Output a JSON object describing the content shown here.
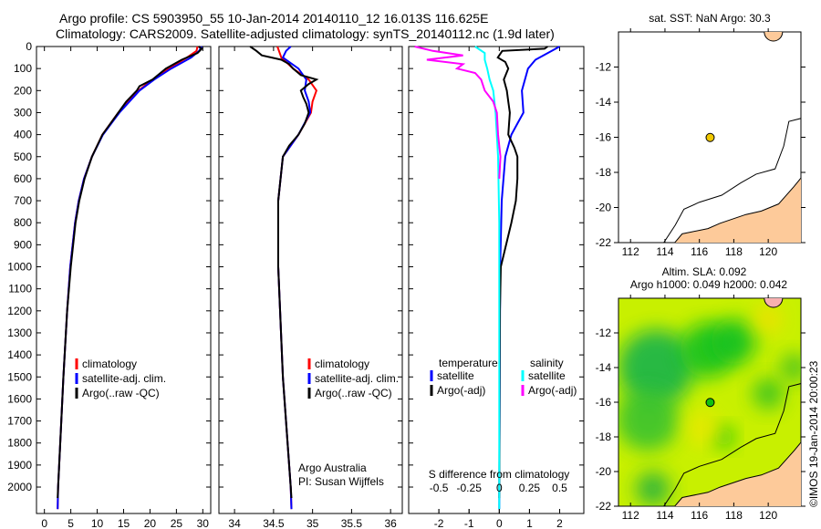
{
  "title": {
    "line1": "Argo profile: CS 5903950_55 10-Jan-2014 20140110_12 16.013S 116.625E",
    "line2": "Climatology: CARS2009. Satellite-adjusted climatology: synTS_20140112.nc (1.9d later)"
  },
  "watermark": "©IMOS 19-Jan-2014 20:00:23",
  "colors": {
    "climatology": "#ff0000",
    "satellite": "#0000ff",
    "argo": "#000000",
    "sal_satellite": "#00ffff",
    "sal_argo": "#ff00ff",
    "land": "#fdca9a"
  },
  "chart_data": [
    {
      "type": "line",
      "xlabel": "temperature (deg C)",
      "ylabel": "depth",
      "xlim": [
        -1.5,
        31.5
      ],
      "ylim": [
        2120,
        0
      ],
      "xticks": [
        0,
        5,
        10,
        15,
        20,
        25,
        30
      ],
      "yticks": [
        0,
        100,
        200,
        300,
        400,
        500,
        600,
        700,
        800,
        900,
        1000,
        1100,
        1200,
        1300,
        1400,
        1500,
        1600,
        1700,
        1800,
        1900,
        2000
      ],
      "legend": [
        "climatology",
        "satellite-adj. clim.",
        "Argo(..raw -QC)"
      ],
      "series": [
        {
          "name": "climatology",
          "depth": [
            0,
            20,
            50,
            100,
            150,
            200,
            300,
            400,
            500,
            600,
            700,
            800,
            1000,
            1200,
            1500,
            1700,
            2000,
            2100
          ],
          "values": [
            29,
            28.8,
            27,
            23.5,
            20.5,
            17.8,
            14,
            11,
            9,
            7.5,
            6.5,
            5.8,
            4.9,
            4.3,
            3.6,
            3.2,
            2.6,
            2.5
          ]
        },
        {
          "name": "satellite-adj. clim.",
          "depth": [
            0,
            20,
            50,
            100,
            150,
            200,
            300,
            400,
            500,
            600,
            700,
            800,
            1000,
            1200,
            1500,
            1700,
            2000,
            2100
          ],
          "values": [
            29.8,
            29.3,
            27.8,
            24,
            20.8,
            18,
            14.2,
            11.1,
            9,
            7.5,
            6.5,
            5.8,
            4.9,
            4.3,
            3.6,
            3.2,
            2.6,
            2.5
          ]
        },
        {
          "name": "Argo(..raw -QC)",
          "depth": [
            0,
            10,
            30,
            60,
            100,
            150,
            180,
            200,
            250,
            300,
            400,
            500,
            600,
            700,
            800,
            1000,
            1200,
            1500,
            1700,
            2000,
            2050
          ],
          "values": [
            29.2,
            29.8,
            29,
            26,
            23,
            20.5,
            18,
            17.5,
            15.5,
            14,
            11,
            9,
            7.6,
            6.6,
            5.9,
            5,
            4.3,
            3.6,
            3.2,
            2.6,
            2.5
          ]
        }
      ]
    },
    {
      "type": "line",
      "xlabel": "salinity",
      "xlim": [
        33.8,
        36.15
      ],
      "ylim": [
        2120,
        0
      ],
      "xticks": [
        34,
        34.5,
        35,
        35.5,
        36
      ],
      "xticklabels": [
        "34",
        "34.5",
        "35",
        "35.5",
        "36"
      ],
      "legend": [
        "climatology",
        "satellite-adj. clim.",
        "Argo(..raw -QC)"
      ],
      "annotation": [
        "Argo Australia",
        "PI: Susan Wijffels"
      ],
      "series": [
        {
          "name": "climatology",
          "depth": [
            0,
            50,
            100,
            150,
            200,
            250,
            300,
            400,
            500,
            700,
            1000,
            1500,
            2000,
            2100
          ],
          "values": [
            34.55,
            34.6,
            34.75,
            34.95,
            35.05,
            35,
            34.98,
            34.82,
            34.62,
            34.56,
            34.56,
            34.62,
            34.72,
            34.73
          ]
        },
        {
          "name": "satellite-adj. clim.",
          "depth": [
            0,
            20,
            50,
            100,
            150,
            200,
            250,
            300,
            400,
            500,
            700,
            1000,
            1500,
            2000,
            2100
          ],
          "values": [
            34.72,
            34.66,
            34.62,
            34.82,
            34.92,
            34.9,
            34.95,
            34.97,
            34.82,
            34.62,
            34.56,
            34.56,
            34.62,
            34.72,
            34.73
          ]
        },
        {
          "name": "Argo(..raw -QC)",
          "depth": [
            0,
            20,
            40,
            60,
            80,
            100,
            130,
            150,
            170,
            200,
            230,
            260,
            300,
            350,
            400,
            450,
            500,
            700,
            1000,
            1500,
            2000,
            2050
          ],
          "values": [
            34.2,
            34.28,
            34.35,
            34.6,
            34.7,
            34.75,
            34.85,
            35.05,
            34.95,
            34.85,
            34.88,
            34.92,
            34.95,
            34.9,
            34.82,
            34.7,
            34.62,
            34.56,
            34.56,
            34.62,
            34.72,
            34.73
          ]
        }
      ]
    },
    {
      "type": "line",
      "xlabel": "T difference from climatology",
      "x2label": "S difference from climatology",
      "xlim": [
        -3,
        2.8
      ],
      "ylim": [
        2120,
        0
      ],
      "xticks": [
        -2,
        -1,
        0,
        1,
        2
      ],
      "x2ticks": [
        -0.5,
        -0.25,
        0,
        0.25,
        0.5
      ],
      "x2ticklabels": [
        "-0.5",
        "-0.25",
        "0",
        "0.25",
        "0.5"
      ],
      "legend_headers": [
        "temperature",
        "salinity"
      ],
      "legend": [
        "satellite",
        "Argo(-adj)",
        "satellite",
        "Argo(-adj)"
      ],
      "series": [
        {
          "name": "T satellite",
          "depth": [
            0,
            30,
            60,
            100,
            200,
            300,
            350,
            400,
            500,
            700,
            1000,
            2100
          ],
          "values": [
            2.0,
            1.6,
            1.2,
            0.95,
            0.75,
            0.8,
            0.6,
            0.4,
            0.2,
            0.08,
            0.03,
            0
          ]
        },
        {
          "name": "T Argo(-adj)",
          "depth": [
            0,
            10,
            20,
            50,
            70,
            100,
            150,
            200,
            250,
            300,
            400,
            460,
            500,
            600,
            700,
            800,
            1000,
            1200,
            2050
          ],
          "values": [
            1.6,
            1.5,
            0.1,
            -0.05,
            0.2,
            0.3,
            0.15,
            0.25,
            0.3,
            0.35,
            0.3,
            0.5,
            0.6,
            0.6,
            0.55,
            0.4,
            0.05,
            0.02,
            0
          ]
        },
        {
          "name": "S satellite",
          "depth": [
            0,
            30,
            60,
            100,
            150,
            200,
            300,
            500,
            800,
            1200,
            2100
          ],
          "values": [
            -0.2,
            -0.12,
            -0.12,
            -0.1,
            -0.08,
            -0.05,
            -0.03,
            -0.01,
            0,
            0,
            0
          ]
        },
        {
          "name": "S Argo(-adj)",
          "depth": [
            0,
            20,
            40,
            60,
            80,
            100,
            120,
            150,
            200,
            250,
            300,
            400,
            500,
            600
          ],
          "values": [
            -0.7,
            -0.55,
            -0.3,
            -0.6,
            -0.3,
            -0.35,
            -0.2,
            -0.15,
            -0.12,
            -0.05,
            -0.02,
            -0.01,
            0.01,
            0
          ]
        }
      ]
    },
    {
      "type": "map",
      "title": "sat. SST: NaN Argo: 30.3",
      "xlim": [
        111.3,
        121.9
      ],
      "ylim": [
        -22,
        -10
      ],
      "xticks": [
        112,
        114,
        116,
        118,
        120
      ],
      "yticks": [
        -12,
        -14,
        -16,
        -18,
        -20,
        -22
      ],
      "point": {
        "lon": 116.625,
        "lat": -16.013
      }
    },
    {
      "type": "heatmap",
      "title": [
        "Altim. SLA: 0.092",
        "Argo h1000: 0.049 h2000: 0.042"
      ],
      "xlim": [
        111.3,
        121.9
      ],
      "ylim": [
        -22,
        -10
      ],
      "xticks": [
        112,
        114,
        116,
        118,
        120
      ],
      "yticks": [
        -12,
        -14,
        -16,
        -18,
        -20,
        -22
      ],
      "point": {
        "lon": 116.625,
        "lat": -16.013
      }
    }
  ]
}
